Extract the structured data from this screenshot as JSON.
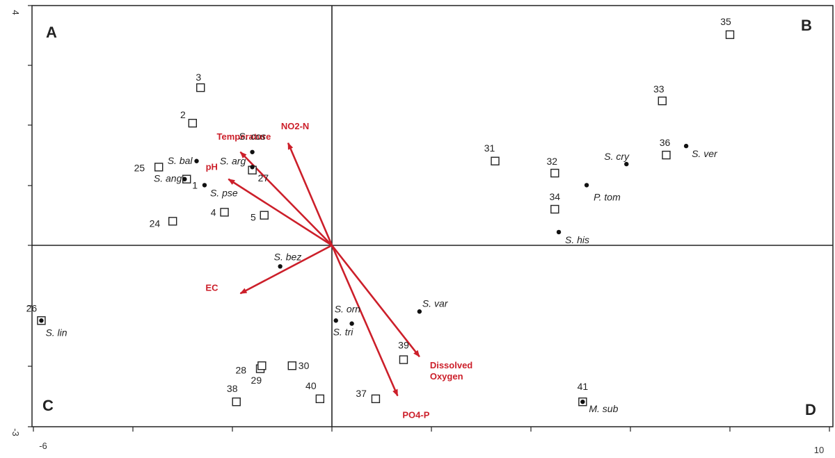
{
  "chart_data": {
    "type": "scatter",
    "title": "",
    "xlabel": "",
    "ylabel": "",
    "xlim": [
      -6,
      10
    ],
    "ylim": [
      -3,
      4
    ],
    "x_tick_labels": [
      "-6",
      "10"
    ],
    "y_tick_labels": [
      "4",
      "-3"
    ],
    "colors": {
      "arrow": "#cc1f2a",
      "env_label": "#cc1f2a",
      "axis": "#222222",
      "point": "#111111"
    },
    "quadrants": [
      {
        "label": "A",
        "position": "top-left"
      },
      {
        "label": "B",
        "position": "top-right"
      },
      {
        "label": "C",
        "position": "bottom-left"
      },
      {
        "label": "D",
        "position": "bottom-right"
      }
    ],
    "sites": [
      {
        "label": "1",
        "x": -3.65,
        "y": 1.1
      },
      {
        "label": "2",
        "x": -3.5,
        "y": 2.03
      },
      {
        "label": "3",
        "x": -3.3,
        "y": 2.62
      },
      {
        "label": "4",
        "x": -2.7,
        "y": 0.55
      },
      {
        "label": "5",
        "x": -1.7,
        "y": 0.5
      },
      {
        "label": "24",
        "x": -4.0,
        "y": 0.4
      },
      {
        "label": "25",
        "x": -4.35,
        "y": 1.3
      },
      {
        "label": "26",
        "x": -7.3,
        "y": -1.25
      },
      {
        "label": "27",
        "x": -2.0,
        "y": 1.25
      },
      {
        "label": "28",
        "x": -1.8,
        "y": -2.05
      },
      {
        "label": "29",
        "x": -1.76,
        "y": -2.0
      },
      {
        "label": "30",
        "x": -1.0,
        "y": -2.0
      },
      {
        "label": "31",
        "x": 4.1,
        "y": 1.4
      },
      {
        "label": "32",
        "x": 5.6,
        "y": 1.2
      },
      {
        "label": "33",
        "x": 8.3,
        "y": 2.4
      },
      {
        "label": "34",
        "x": 5.6,
        "y": 0.6
      },
      {
        "label": "35",
        "x": 10.0,
        "y": 3.5
      },
      {
        "label": "36",
        "x": 8.4,
        "y": 1.5
      },
      {
        "label": "37",
        "x": 1.1,
        "y": -2.55
      },
      {
        "label": "38",
        "x": -2.4,
        "y": -2.6
      },
      {
        "label": "39",
        "x": 1.8,
        "y": -1.9
      },
      {
        "label": "40",
        "x": -0.3,
        "y": -2.55
      },
      {
        "label": "41",
        "x": 6.3,
        "y": -2.6
      }
    ],
    "species": [
      {
        "label": "S. cos",
        "x": -2.0,
        "y": 1.55
      },
      {
        "label": "S. arg",
        "x": -2.0,
        "y": 1.3
      },
      {
        "label": "S. bal",
        "x": -3.4,
        "y": 1.4
      },
      {
        "label": "S. ang",
        "x": -3.7,
        "y": 1.1
      },
      {
        "label": "S. pse",
        "x": -3.2,
        "y": 1.0
      },
      {
        "label": "S. bez",
        "x": -1.3,
        "y": -0.35
      },
      {
        "label": "S. lin",
        "x": -7.3,
        "y": -1.25
      },
      {
        "label": "S. orn",
        "x": 0.1,
        "y": -1.25
      },
      {
        "label": "S. tri",
        "x": 0.5,
        "y": -1.3
      },
      {
        "label": "S. var",
        "x": 2.2,
        "y": -1.1
      },
      {
        "label": "S. cry",
        "x": 7.4,
        "y": 1.35
      },
      {
        "label": "S. ver",
        "x": 8.9,
        "y": 1.65
      },
      {
        "label": "P. tom",
        "x": 6.4,
        "y": 1.0
      },
      {
        "label": "S. his",
        "x": 5.7,
        "y": 0.22
      },
      {
        "label": "M. sub",
        "x": 6.3,
        "y": -2.6
      }
    ],
    "environmental_vectors": [
      {
        "label": "NO2-N",
        "x": -1.1,
        "y": 1.7
      },
      {
        "label": "Temperature",
        "x": -2.3,
        "y": 1.55
      },
      {
        "label": "pH",
        "x": -2.6,
        "y": 1.1
      },
      {
        "label": "EC",
        "x": -2.3,
        "y": -0.8
      },
      {
        "label": "Dissolved Oxygen",
        "x": 2.2,
        "y": -1.85
      },
      {
        "label": "PO4-P",
        "x": 1.65,
        "y": -2.5
      }
    ]
  }
}
